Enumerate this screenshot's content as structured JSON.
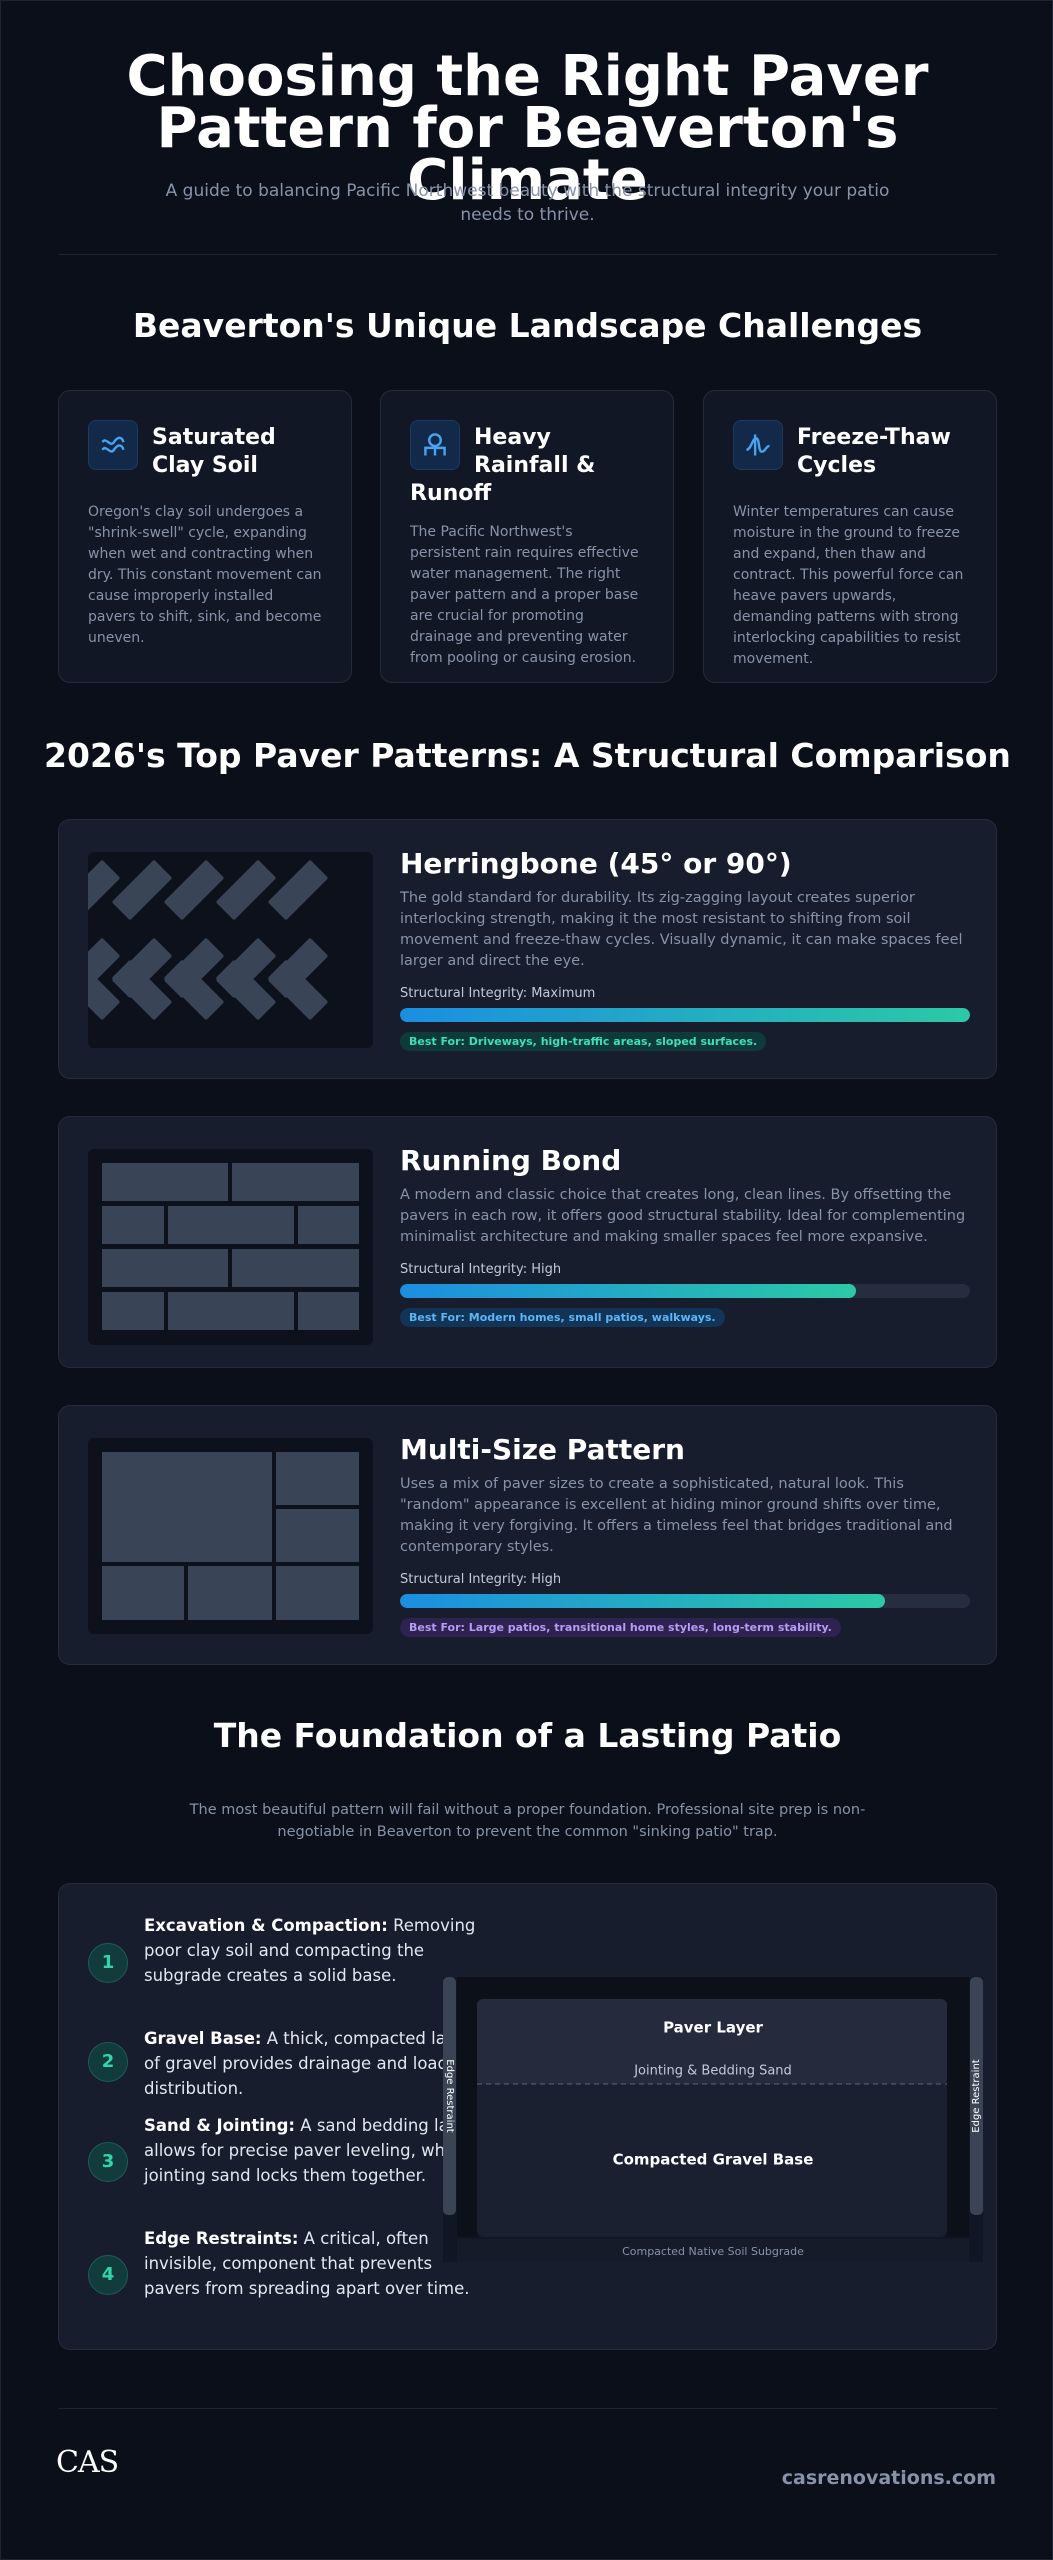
{
  "header": {
    "title": "Choosing the Right Paver Pattern for Beaverton's Climate",
    "subtitle": "A guide to balancing Pacific Northwest beauty with the structural integrity your patio needs to thrive."
  },
  "challenges": {
    "title": "Beaverton's Unique Landscape Challenges",
    "cards": [
      {
        "title": "Saturated Clay Soil",
        "text": "Oregon's clay soil undergoes a \"shrink-swell\" cycle, expanding when wet and contracting when dry. This constant movement can cause improperly installed pavers to shift, sink, and become uneven."
      },
      {
        "title": "Heavy Rainfall & Runoff",
        "text": "The Pacific Northwest's persistent rain requires effective water management. The right paver pattern and a proper base are crucial for promoting drainage and preventing water from pooling or causing erosion."
      },
      {
        "title": "Freeze-Thaw Cycles",
        "text": "Winter temperatures can cause moisture in the ground to freeze and expand, then thaw and contract. This powerful force can heave pavers upwards, demanding patterns with strong interlocking capabilities to resist movement."
      }
    ]
  },
  "patterns": {
    "title": "2026's Top Paver Patterns: A Structural Comparison",
    "items": [
      {
        "name": "Herringbone (45° or 90°)",
        "description": "The gold standard for durability. Its zig-zagging layout creates superior interlocking strength, making it the most resistant to shifting from soil movement and freeze-thaw cycles. Visually dynamic, it can make spaces feel larger and direct the eye.",
        "integrity_label": "Structural Integrity: Maximum",
        "integrity": 100,
        "best_for": "Best For: Driveways, high-traffic areas, sloped surfaces."
      },
      {
        "name": "Running Bond",
        "description": "A modern and classic choice that creates long, clean lines. By offsetting the pavers in each row, it offers good structural stability. Ideal for complementing minimalist architecture and making smaller spaces feel more expansive.",
        "integrity_label": "Structural Integrity: High",
        "integrity": 80,
        "best_for": "Best For: Modern homes, small patios, walkways."
      },
      {
        "name": "Multi-Size Pattern",
        "description": "Uses a mix of paver sizes to create a sophisticated, natural look. This \"random\" appearance is excellent at hiding minor ground shifts over time, making it very forgiving. It offers a timeless feel that bridges traditional and contemporary styles.",
        "integrity_label": "Structural Integrity: High",
        "integrity": 85,
        "best_for": "Best For: Large patios, transitional home styles, long-term stability."
      }
    ]
  },
  "foundation": {
    "title": "The Foundation of a Lasting Patio",
    "intro": "The most beautiful pattern will fail without a proper foundation. Professional site prep is non-negotiable in Beaverton to prevent the common \"sinking patio\" trap.",
    "steps": [
      {
        "number": "1",
        "title": "Excavation & Compaction:",
        "text": "Removing poor clay soil and compacting the subgrade creates a solid base."
      },
      {
        "number": "2",
        "title": "Gravel Base:",
        "text": "A thick, compacted layer of gravel provides drainage and load distribution."
      },
      {
        "number": "3",
        "title": "Sand & Jointing:",
        "text": "A sand bedding layer allows for precise paver leveling, while jointing sand locks them together."
      },
      {
        "number": "4",
        "title": "Edge Restraints:",
        "text": "A critical, often invisible, component that prevents pavers from spreading apart over time."
      }
    ],
    "diagram": {
      "paver_layer": "Paver Layer",
      "sand_layer": "Jointing & Bedding Sand",
      "gravel_layer": "Compacted Gravel Base",
      "subgrade": "Compacted Native Soil Subgrade",
      "edge_left": "Edge Restraint",
      "edge_right": "Edge Restraint"
    }
  },
  "footer": {
    "logo": "CAS",
    "website": "casrenovations.com"
  }
}
